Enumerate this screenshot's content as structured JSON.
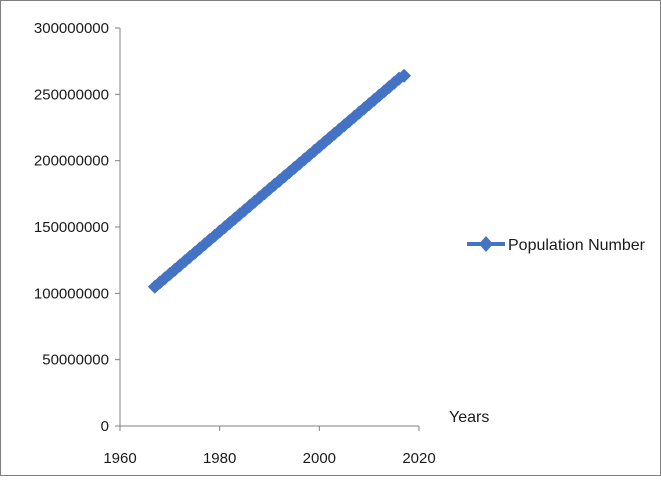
{
  "chart_data": {
    "type": "line",
    "title": "",
    "xlabel": "Years",
    "ylabel": "",
    "xlim": [
      1960,
      2020
    ],
    "ylim": [
      0,
      300000000
    ],
    "x_ticks": [
      1960,
      1980,
      2000,
      2020
    ],
    "y_ticks": [
      0,
      50000000,
      100000000,
      150000000,
      200000000,
      250000000,
      300000000
    ],
    "x_tick_labels": [
      "1960",
      "1980",
      "2000",
      "2020"
    ],
    "y_tick_labels": [
      "0",
      "50000000",
      "100000000",
      "150000000",
      "200000000",
      "250000000",
      "300000000"
    ],
    "grid": false,
    "legend_position": "right",
    "series": [
      {
        "name": "Population Number",
        "color": "#4472c4",
        "marker": "diamond",
        "x": [
          1967,
          1968,
          1969,
          1970,
          1971,
          1972,
          1973,
          1974,
          1975,
          1976,
          1977,
          1978,
          1979,
          1980,
          1981,
          1982,
          1983,
          1984,
          1985,
          1986,
          1987,
          1988,
          1989,
          1990,
          1991,
          1992,
          1993,
          1994,
          1995,
          1996,
          1997,
          1998,
          1999,
          2000,
          2001,
          2002,
          2003,
          2004,
          2005,
          2006,
          2007,
          2008,
          2009,
          2010,
          2011,
          2012,
          2013,
          2014,
          2015,
          2016,
          2017
        ],
        "y": [
          105000000,
          108200000,
          111400000,
          114600000,
          117800000,
          121000000,
          124200000,
          127400000,
          130600000,
          133800000,
          137000000,
          140200000,
          143400000,
          146600000,
          149800000,
          153000000,
          156200000,
          159400000,
          162600000,
          165800000,
          169000000,
          172200000,
          175400000,
          178600000,
          181800000,
          185000000,
          188200000,
          191400000,
          194600000,
          197800000,
          201000000,
          204200000,
          207400000,
          210600000,
          213800000,
          217000000,
          220200000,
          223400000,
          226600000,
          229800000,
          233000000,
          236200000,
          239400000,
          242600000,
          245800000,
          249000000,
          252200000,
          255400000,
          258600000,
          261800000,
          264000000
        ]
      }
    ]
  }
}
